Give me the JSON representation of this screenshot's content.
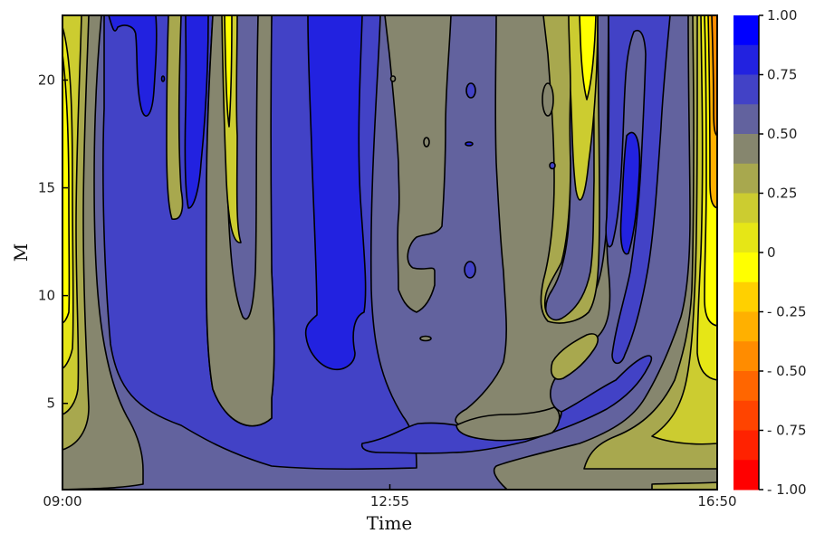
{
  "chart_data": {
    "type": "heatmap",
    "subtype": "filled-contour",
    "title": "",
    "xlabel": "Time",
    "ylabel": "M",
    "x_ticks": [
      "09:00",
      "12:55",
      "16:50"
    ],
    "x_range": [
      "09:00",
      "16:50"
    ],
    "y_ticks": [
      5,
      10,
      15,
      20
    ],
    "y_range": [
      1,
      23
    ],
    "colorbar": {
      "range": [
        -1,
        1
      ],
      "tick_values": [
        1,
        0.75,
        0.5,
        0.25,
        0,
        -0.25,
        -0.5,
        -0.75,
        -1
      ],
      "tick_labels": [
        "1.00",
        "0.75",
        "0.50",
        "0.25",
        "0",
        "- 0.25",
        "- 0.50",
        "- 0.75",
        "- 1.00"
      ],
      "bands_top_to_bottom": [
        "#0000ff",
        "#2222e0",
        "#4242c6",
        "#62629e",
        "#86866e",
        "#a8a84e",
        "#cccc30",
        "#e6e616",
        "#ffff00",
        "#ffd000",
        "#ffb000",
        "#ff8c00",
        "#ff6600",
        "#ff4400",
        "#ff2200",
        "#ff0000"
      ]
    },
    "contour_levels": [
      -1,
      -0.875,
      -0.75,
      -0.625,
      -0.5,
      -0.375,
      -0.25,
      -0.125,
      0,
      0.125,
      0.25,
      0.375,
      0.5,
      0.625,
      0.75,
      0.875,
      1
    ],
    "background_color": "#62629e",
    "regions_description": [
      {
        "value_band": "0.75-0.875",
        "color": "#2222e0"
      },
      {
        "value_band": "0.625-0.75",
        "color": "#4242c6"
      },
      {
        "value_band": "0.375-0.5",
        "color": "#86866e"
      },
      {
        "value_band": "0.25-0.375",
        "color": "#a8a84e"
      },
      {
        "value_band": "0.125-0.25",
        "color": "#cccc30"
      },
      {
        "value_band": "0-0.125",
        "color": "#e6e616"
      },
      {
        "value_band": "-0.125-0",
        "color": "#ffff00"
      },
      {
        "value_band": "-0.375--0.25",
        "color": "#ffb000"
      },
      {
        "value_band": "-0.5--0.375",
        "color": "#ff8c00"
      }
    ]
  }
}
